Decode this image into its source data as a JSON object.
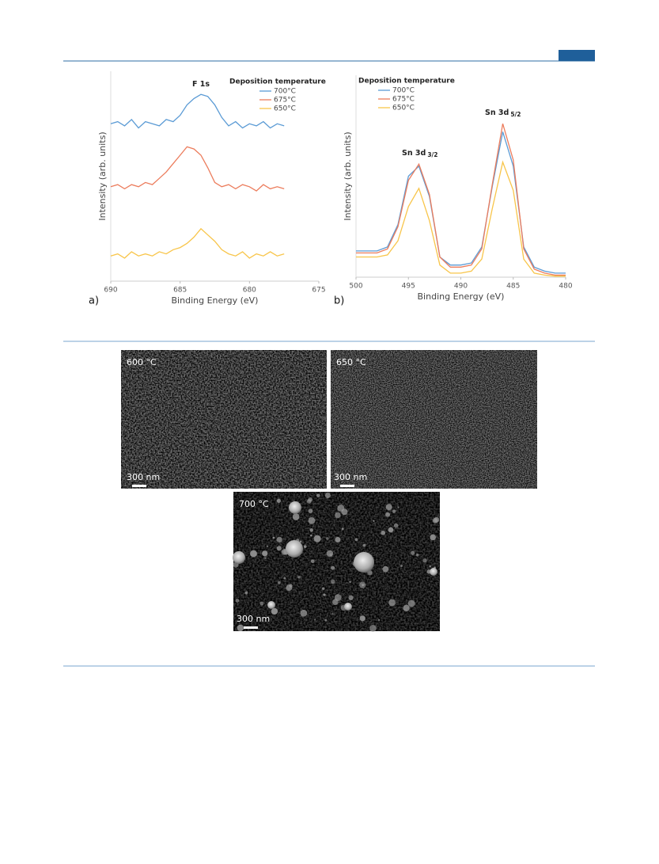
{
  "chart_data": [
    {
      "type": "line",
      "panel_label": "a)",
      "xlabel": "Binding Energy (eV)",
      "ylabel": "Intensity (arb. units)",
      "legend_title": "Deposition temperature",
      "annotations": [
        {
          "text": "F 1s"
        }
      ],
      "xlim": [
        690,
        675
      ],
      "xticks": [
        690,
        685,
        680,
        675
      ],
      "ylim": [
        0,
        100
      ],
      "x": [
        690,
        689.5,
        689,
        688.5,
        688,
        687.5,
        687,
        686.5,
        686,
        685.5,
        685,
        684.5,
        684,
        683.5,
        683,
        682.5,
        682,
        681.5,
        681,
        680.5,
        680,
        679.5,
        679,
        678.5,
        678,
        677.5
      ],
      "series": [
        {
          "name": "700°C",
          "color": "#5b9bd5",
          "values": [
            75,
            76,
            74,
            77,
            73,
            76,
            75,
            74,
            77,
            76,
            79,
            84,
            87,
            89,
            88,
            84,
            78,
            74,
            76,
            73,
            75,
            74,
            76,
            73,
            75,
            74
          ]
        },
        {
          "name": "675°C",
          "color": "#ec7c5c",
          "values": [
            45,
            46,
            44,
            46,
            45,
            47,
            46,
            49,
            52,
            56,
            60,
            64,
            63,
            60,
            54,
            47,
            45,
            46,
            44,
            46,
            45,
            43,
            46,
            44,
            45,
            44
          ]
        },
        {
          "name": "650°C",
          "color": "#f8c54a",
          "values": [
            12,
            13,
            11,
            14,
            12,
            13,
            12,
            14,
            13,
            15,
            16,
            18,
            21,
            25,
            22,
            19,
            15,
            13,
            12,
            14,
            11,
            13,
            12,
            14,
            12,
            13
          ]
        }
      ]
    },
    {
      "type": "line",
      "panel_label": "b)",
      "xlabel": "Binding Energy (eV)",
      "ylabel": "Intensity (arb. units)",
      "legend_title": "Deposition temperature",
      "annotations": [
        {
          "text": "Sn 3d",
          "sub": "3/2"
        },
        {
          "text": "Sn 3d",
          "sub": "5/2"
        }
      ],
      "xlim": [
        500,
        480
      ],
      "xticks": [
        500,
        495,
        490,
        485,
        480
      ],
      "ylim": [
        0,
        100
      ],
      "x": [
        500,
        499,
        498,
        497,
        496,
        495,
        494,
        493,
        492,
        491,
        490,
        489,
        488,
        487,
        486,
        485,
        484,
        483,
        482,
        481,
        480
      ],
      "series": [
        {
          "name": "700°C",
          "color": "#5b9bd5",
          "values": [
            13,
            13,
            13,
            15,
            26,
            50,
            55,
            40,
            10,
            6,
            6,
            7,
            15,
            45,
            72,
            55,
            15,
            5,
            3,
            2,
            2
          ]
        },
        {
          "name": "675°C",
          "color": "#ec7c5c",
          "values": [
            12,
            12,
            12,
            14,
            25,
            48,
            56,
            41,
            10,
            5,
            5,
            6,
            14,
            46,
            76,
            58,
            14,
            4,
            2,
            1,
            1
          ]
        },
        {
          "name": "650°C",
          "color": "#f8c54a",
          "values": [
            10,
            10,
            10,
            11,
            18,
            35,
            44,
            28,
            6,
            2,
            2,
            3,
            9,
            34,
            57,
            43,
            9,
            2,
            1,
            0.5,
            0.5
          ]
        }
      ]
    }
  ],
  "sem_images": [
    {
      "label": "600 °C",
      "scale_bar": "300 nm"
    },
    {
      "label": "650 °C",
      "scale_bar": "300 nm"
    },
    {
      "label": "700 °C",
      "scale_bar": "300 nm"
    }
  ]
}
